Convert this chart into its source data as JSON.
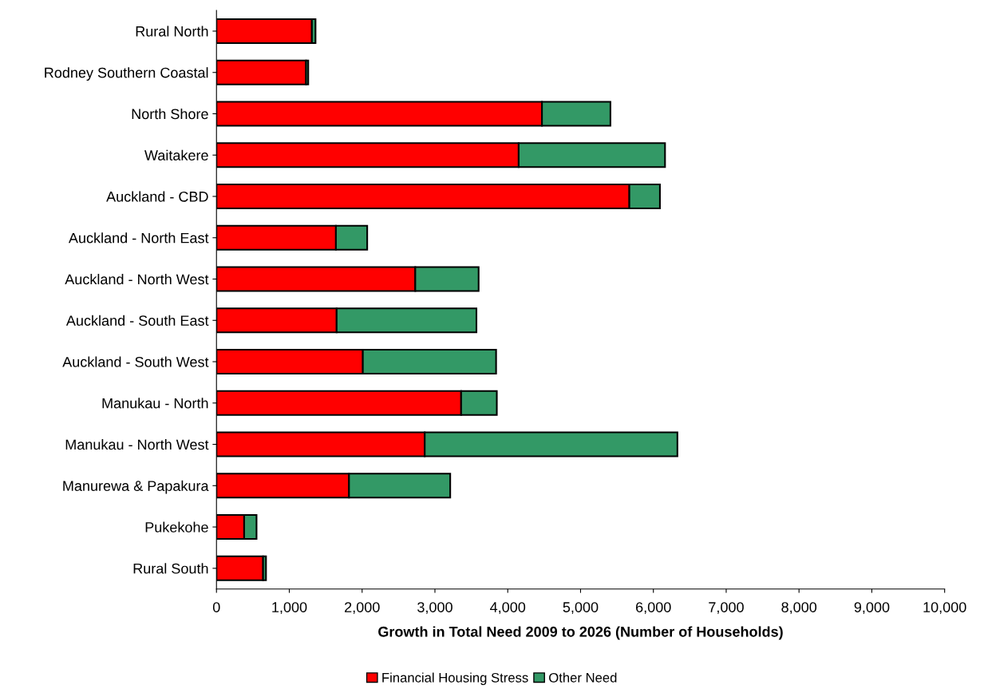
{
  "chart_data": {
    "type": "bar",
    "orientation": "horizontal",
    "stacked": true,
    "xlabel": "Growth in Total Need 2009 to 2026 (Number of Households)",
    "categories": [
      "Rural North",
      "Rodney Southern Coastal",
      "North Shore",
      "Waitakere",
      "Auckland - CBD",
      "Auckland - North East",
      "Auckland - North West",
      "Auckland - South East",
      "Auckland - South West",
      "Manukau - North",
      "Manukau - North West",
      "Manurewa & Papakura",
      "Pukekohe",
      "Rural South"
    ],
    "series": [
      {
        "name": "Financial Housing Stress",
        "color": "#ff0000",
        "values": [
          1310,
          1230,
          4470,
          4150,
          5670,
          1640,
          2730,
          1650,
          2010,
          3360,
          2860,
          1820,
          380,
          640
        ]
      },
      {
        "name": "Other Need",
        "color": "#339966",
        "values": [
          50,
          30,
          940,
          2010,
          420,
          430,
          870,
          1920,
          1830,
          490,
          3470,
          1390,
          170,
          40
        ]
      }
    ],
    "xlim": [
      0,
      10000
    ],
    "xticks": [
      0,
      {
        "value": 1000,
        "label": "1,000"
      },
      {
        "value": 2000,
        "label": "2,000"
      },
      {
        "value": 3000,
        "label": "3,000"
      },
      {
        "value": 4000,
        "label": "4,000"
      },
      {
        "value": 5000,
        "label": "5,000"
      },
      {
        "value": 6000,
        "label": "6,000"
      },
      {
        "value": 7000,
        "label": "7,000"
      },
      {
        "value": 8000,
        "label": "8,000"
      },
      {
        "value": 9000,
        "label": "9,000"
      },
      {
        "value": 10000,
        "label": "10,000"
      }
    ],
    "grid": false,
    "legend": "bottom"
  }
}
